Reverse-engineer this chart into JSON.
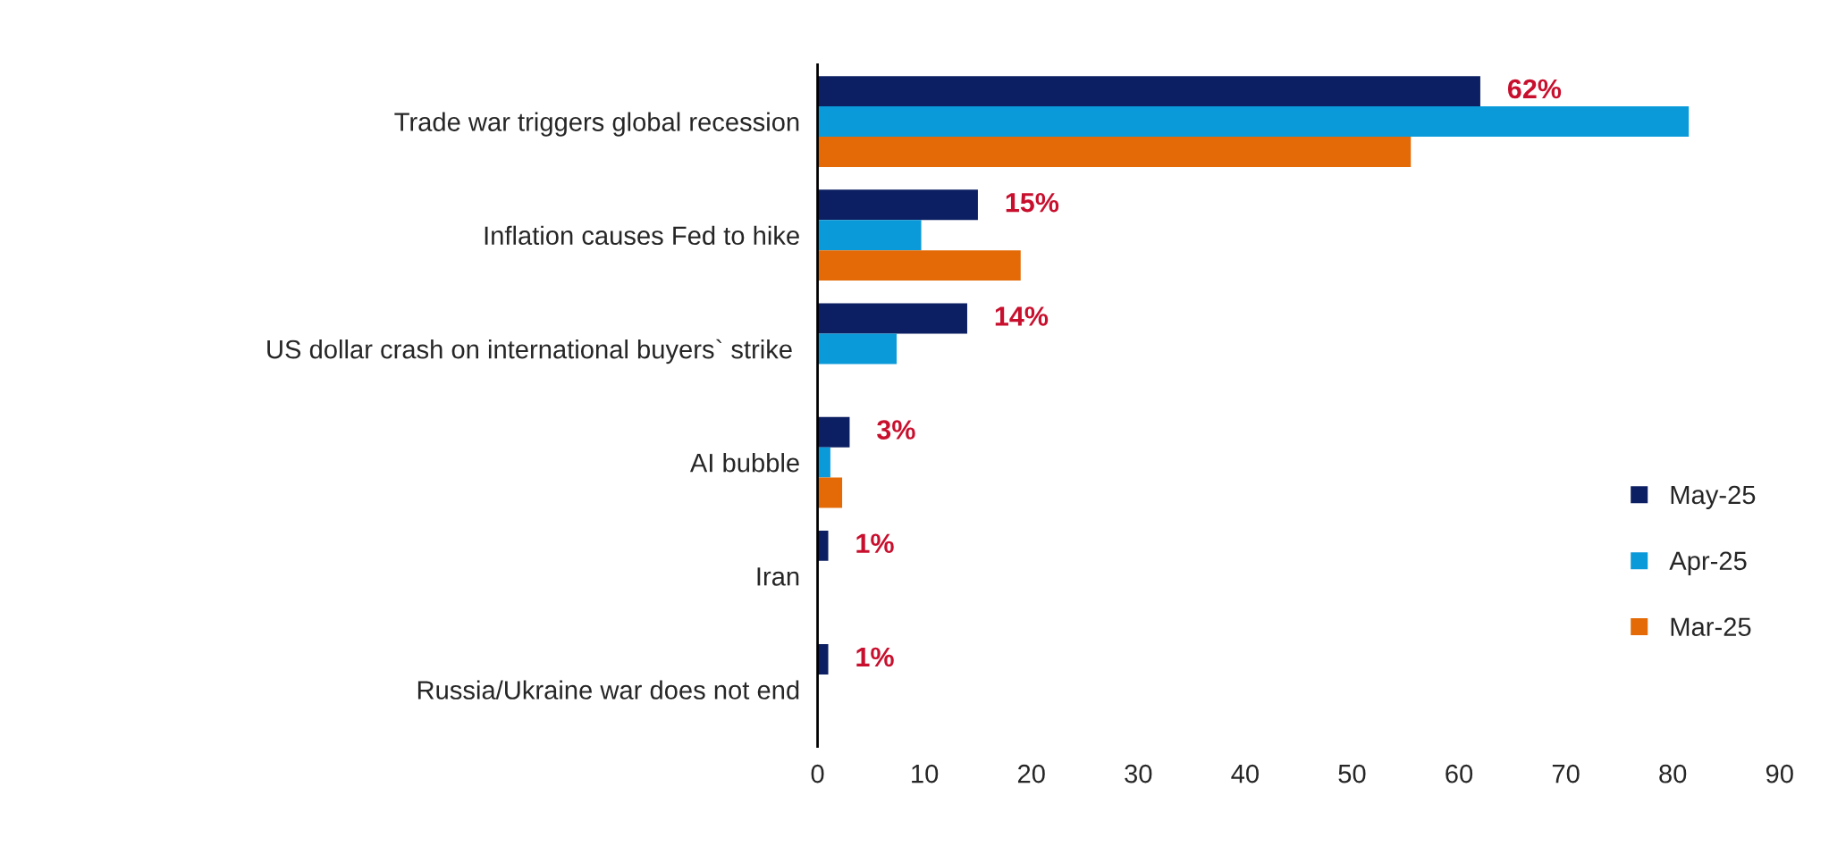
{
  "chart_data": {
    "type": "bar",
    "orientation": "horizontal",
    "categories": [
      "Trade war triggers global recession",
      "Inflation causes Fed to hike",
      "US dollar crash on international buyers` strike ",
      "AI bubble",
      "Iran",
      "Russia/Ukraine war does not end"
    ],
    "series": [
      {
        "name": "May-25",
        "color": "#0c1f62",
        "values": [
          62,
          15,
          14,
          3,
          1,
          1
        ],
        "value_labels": [
          "62%",
          "15%",
          "14%",
          "3%",
          "1%",
          "1%"
        ]
      },
      {
        "name": "Apr-25",
        "color": "#0a9ad9",
        "values": [
          81.5,
          9.7,
          7.4,
          1.2,
          null,
          null
        ]
      },
      {
        "name": "Mar-25",
        "color": "#e36a06",
        "values": [
          55.5,
          19,
          null,
          2.3,
          null,
          null
        ]
      }
    ],
    "xlim": [
      0,
      90
    ],
    "xticks": [
      0,
      10,
      20,
      30,
      40,
      50,
      60,
      70,
      80,
      90
    ],
    "grid": false,
    "legend": "bottom right"
  }
}
